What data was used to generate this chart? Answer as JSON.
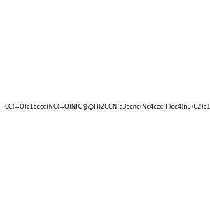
{
  "smiles": "CC(=O)c1cccc(NC(=O)N[C@@H]2CCN(c3ccnc(Nc4ccc(F)cc4)n3)C2)c1",
  "image_size": 300,
  "background_color": "#f0f0f0"
}
